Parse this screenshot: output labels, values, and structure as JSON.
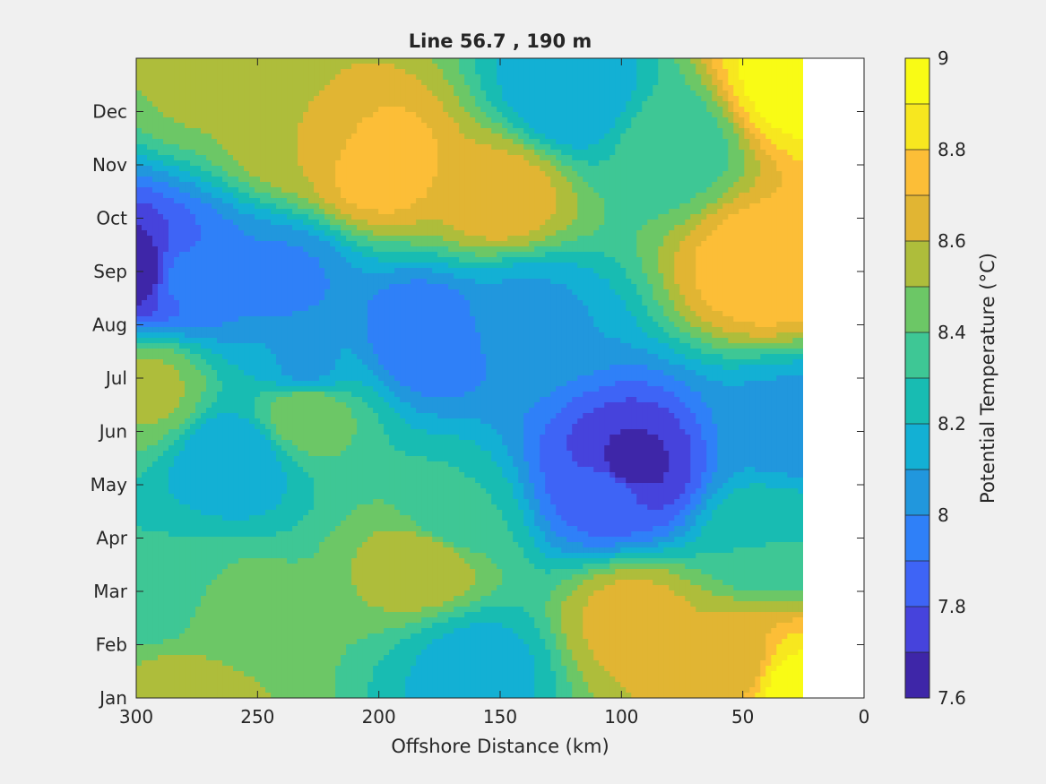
{
  "chart_data": {
    "type": "heatmap",
    "subtype": "filled-contour",
    "title": "Line 56.7 , 190 m",
    "xlabel": "Offshore Distance (km)",
    "x_direction": "reversed",
    "xlim": [
      300,
      0
    ],
    "x_ticks": [
      300,
      250,
      200,
      150,
      100,
      50,
      0
    ],
    "x_tick_labels": [
      "300",
      "250",
      "200",
      "150",
      "100",
      "50",
      "0"
    ],
    "ylabel": "",
    "ylim": [
      1,
      13
    ],
    "y_ticks": [
      1,
      2,
      3,
      4,
      5,
      6,
      7,
      8,
      9,
      10,
      11,
      12
    ],
    "y_tick_labels": [
      "Jan",
      "Feb",
      "Mar",
      "Apr",
      "May",
      "Jun",
      "Jul",
      "Aug",
      "Sep",
      "Oct",
      "Nov",
      "Dec"
    ],
    "data_x_extent_km": [
      300,
      25
    ],
    "colorbar": {
      "label": "Potential Temperature (°C)",
      "limits": [
        7.6,
        9.0
      ],
      "ticks": [
        7.6,
        7.8,
        8.0,
        8.2,
        8.4,
        8.6,
        8.8,
        9.0
      ],
      "tick_labels": [
        "7.6",
        "7.8",
        "8",
        "8.2",
        "8.4",
        "8.6",
        "8.8",
        "9"
      ],
      "levels": [
        7.6,
        7.7,
        7.8,
        7.9,
        8.0,
        8.1,
        8.2,
        8.3,
        8.4,
        8.5,
        8.6,
        8.7,
        8.8,
        8.9,
        9.0
      ],
      "colors": [
        "#3e26a8",
        "#4643dc",
        "#3e64f6",
        "#2f80f8",
        "#2197dd",
        "#13b0d4",
        "#18bcb2",
        "#3ec795",
        "#6cc766",
        "#aebd3b",
        "#e1b533",
        "#fcbe37",
        "#f7e71f",
        "#f9fb15"
      ]
    },
    "grid": false,
    "legend": "colorbar-right",
    "features": [
      {
        "x": 300,
        "y": 9.0,
        "value": 7.62
      },
      {
        "x": 280,
        "y": 8.9,
        "value": 7.92
      },
      {
        "x": 240,
        "y": 8.8,
        "value": 7.98
      },
      {
        "x": 180,
        "y": 7.8,
        "value": 7.9
      },
      {
        "x": 230,
        "y": 7.2,
        "value": 8.08
      },
      {
        "x": 97,
        "y": 5.3,
        "value": 7.66
      },
      {
        "x": 105,
        "y": 4.9,
        "value": 7.86
      },
      {
        "x": 200,
        "y": 11.0,
        "value": 8.76
      },
      {
        "x": 150,
        "y": 10.4,
        "value": 8.66
      },
      {
        "x": 232,
        "y": 11.6,
        "value": 8.6
      },
      {
        "x": 120,
        "y": 12.3,
        "value": 8.1
      },
      {
        "x": 40,
        "y": 9.1,
        "value": 8.78
      },
      {
        "x": 28,
        "y": 12.6,
        "value": 8.96
      },
      {
        "x": 28,
        "y": 1.2,
        "value": 8.94
      },
      {
        "x": 55,
        "y": 1.6,
        "value": 8.64
      },
      {
        "x": 95,
        "y": 2.5,
        "value": 8.64
      },
      {
        "x": 180,
        "y": 3.6,
        "value": 8.6
      },
      {
        "x": 230,
        "y": 6.4,
        "value": 8.48
      },
      {
        "x": 295,
        "y": 6.8,
        "value": 8.52
      },
      {
        "x": 160,
        "y": 1.6,
        "value": 8.16
      },
      {
        "x": 170,
        "y": 4.3,
        "value": 8.3
      },
      {
        "x": 260,
        "y": 2.5,
        "value": 8.46
      },
      {
        "x": 260,
        "y": 5.5,
        "value": 8.12
      },
      {
        "x": 290,
        "y": 3.0,
        "value": 8.3
      },
      {
        "x": 30,
        "y": 6.0,
        "value": 8.06
      },
      {
        "x": 40,
        "y": 4.0,
        "value": 8.3
      },
      {
        "x": 140,
        "y": 8.2,
        "value": 8.08
      },
      {
        "x": 270,
        "y": 12.7,
        "value": 8.52
      },
      {
        "x": 80,
        "y": 11.4,
        "value": 8.34
      },
      {
        "x": 280,
        "y": 1.0,
        "value": 8.56
      }
    ]
  }
}
